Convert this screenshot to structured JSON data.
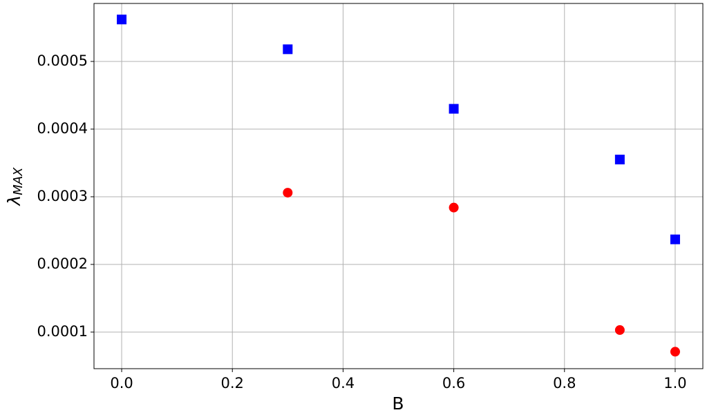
{
  "chart_data": {
    "type": "scatter",
    "x_label": "B",
    "y_label": {
      "symbol": "λ",
      "subscript": "MAX"
    },
    "xlim": [
      -0.05,
      1.05
    ],
    "xticks": [
      {
        "value": 0.0,
        "label": "0.0"
      },
      0.2,
      0.4,
      0.6,
      0.8,
      {
        "value": 1.0,
        "label": "1.0"
      }
    ],
    "ylim": [
      4.59e-05,
      0.0005857
    ],
    "yticks": [
      0.0001,
      0.0002,
      0.0003,
      0.0004,
      0.0005
    ],
    "grid": true,
    "series": [
      {
        "color": "#0000ff",
        "marker": "square",
        "x": [
          0.0,
          0.3,
          0.6,
          0.9,
          1.0
        ],
        "values": [
          0.000562,
          0.000518,
          0.00043,
          0.000355,
          0.000237
        ]
      },
      {
        "color": "#ff0000",
        "marker": "circle",
        "x": [
          0.3,
          0.6,
          0.9,
          1.0
        ],
        "values": [
          0.000306,
          0.000284,
          0.000103,
          7.1e-05
        ]
      }
    ]
  }
}
